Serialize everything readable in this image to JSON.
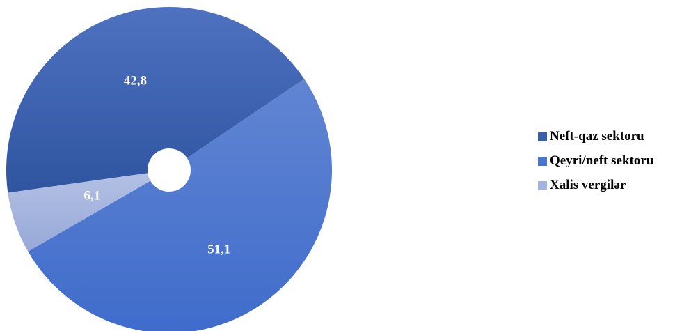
{
  "chart_data": {
    "type": "pie",
    "style": "doughnut",
    "title": "",
    "categories": [
      "Neft-qaz sektoru",
      "Qeyri/neft sektoru",
      "Xalis vergilər"
    ],
    "values": [
      42.8,
      51.1,
      6.1
    ],
    "value_labels": [
      "42,8",
      "51,1",
      "6,1"
    ],
    "colors": [
      "#3a5faa",
      "#4a75cf",
      "#a4b3de"
    ],
    "legend_position": "right",
    "label_color": "#ffffff"
  }
}
